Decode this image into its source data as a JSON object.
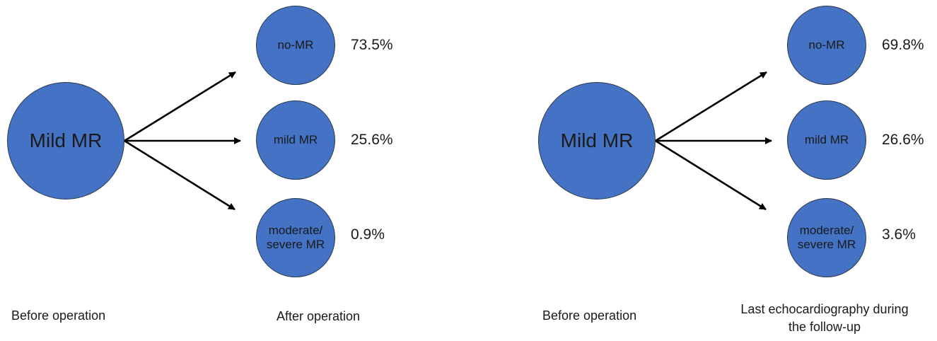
{
  "panels": [
    {
      "source": "Mild MR",
      "outcomes": [
        {
          "label": "no-MR",
          "percent": "73.5%"
        },
        {
          "label": "mild MR",
          "percent": "25.6%"
        },
        {
          "label": "moderate/ severe MR",
          "percent": "0.9%"
        }
      ],
      "before_caption": "Before operation",
      "after_caption": "After operation"
    },
    {
      "source": "Mild MR",
      "outcomes": [
        {
          "label": "no-MR",
          "percent": "69.8%"
        },
        {
          "label": "mild MR",
          "percent": "26.6%"
        },
        {
          "label": "moderate/ severe MR",
          "percent": "3.6%"
        }
      ],
      "before_caption": "Before operation",
      "after_caption": "Last echocardiography during the follow-up"
    }
  ],
  "colors": {
    "circle_fill": "#4472c4",
    "circle_border": "#2f3a4d",
    "arrow": "#000000"
  }
}
